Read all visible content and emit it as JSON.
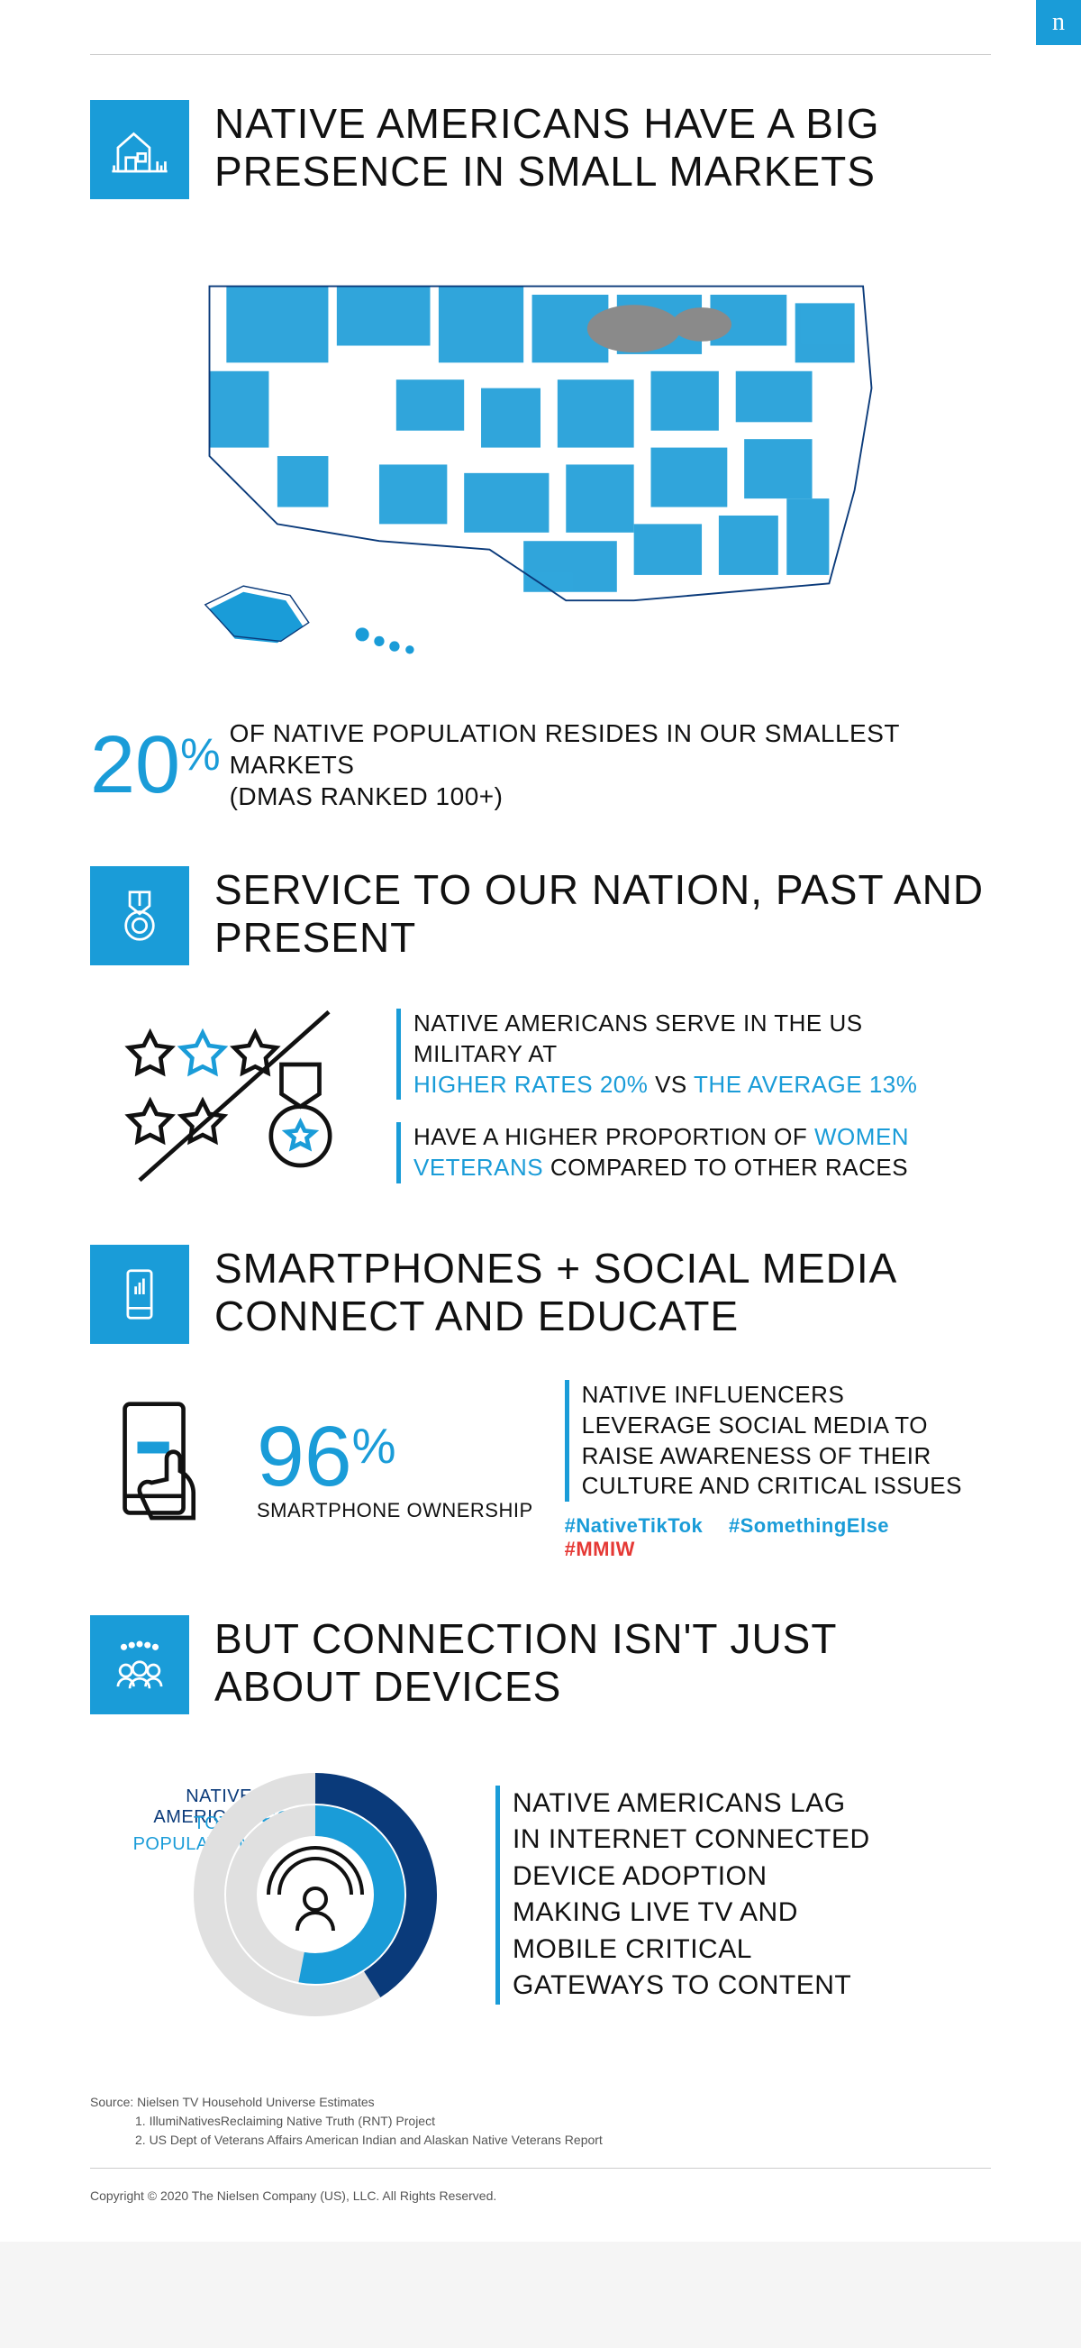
{
  "brand_logo_letter": "n",
  "colors": {
    "accent": "#1a9cd8",
    "dark_blue": "#0a3a7a",
    "red": "#e53935",
    "text": "#111111",
    "grey_bg": "#e0e0e0"
  },
  "section1": {
    "title": "NATIVE AMERICANS HAVE A BIG PRESENCE IN SMALL MARKETS",
    "stat_value": "20",
    "stat_unit": "%",
    "stat_line1": "OF NATIVE POPULATION RESIDES IN OUR SMALLEST MARKETS",
    "stat_line2": "(DMAS RANKED 100+)"
  },
  "section2": {
    "title": "SERVICE TO OUR NATION, PAST AND PRESENT",
    "line1_a": "NATIVE AMERICANS SERVE IN THE US MILITARY AT",
    "line1_b": "HIGHER RATES 20%",
    "line1_c": " VS ",
    "line1_d": "THE AVERAGE 13%",
    "line2_a": "HAVE A HIGHER PROPORTION OF ",
    "line2_b": "WOMEN VETERANS",
    "line2_c": " COMPARED TO OTHER RACES"
  },
  "section3": {
    "title": "SMARTPHONES + SOCIAL MEDIA CONNECT AND EDUCATE",
    "stat_value": "96",
    "stat_unit": "%",
    "stat_label": "SMARTPHONE OWNERSHIP",
    "text": "NATIVE INFLUENCERS LEVERAGE SOCIAL MEDIA TO RAISE AWARENESS OF THEIR CULTURE AND CRITICAL ISSUES",
    "hashtags": [
      {
        "text": "#NativeTikTok",
        "color": "blue"
      },
      {
        "text": "#SomethingElse",
        "color": "blue"
      },
      {
        "text": "#MMIW",
        "color": "red"
      }
    ]
  },
  "section4": {
    "title": "BUT CONNECTION ISN'T JUST ABOUT DEVICES",
    "donut": {
      "native_label": "NATIVE AMERICAN",
      "native_value": "41%",
      "native_pct": 41,
      "total_label": "TOTAL POPULATION",
      "total_value": "53%",
      "total_pct": 53
    },
    "text": "NATIVE AMERICANS LAG IN INTERNET CONNECTED DEVICE ADOPTION MAKING LIVE TV AND MOBILE CRITICAL GATEWAYS TO CONTENT"
  },
  "footer": {
    "source_label": "Source: Nielsen TV Household Universe Estimates",
    "note1": "1. IllumiNativesReclaiming Native Truth (RNT) Project",
    "note2": "2. US Dept of Veterans Affairs American Indian and Alaskan Native Veterans Report",
    "copyright": "Copyright © 2020 The Nielsen Company (US), LLC. All Rights Reserved."
  }
}
